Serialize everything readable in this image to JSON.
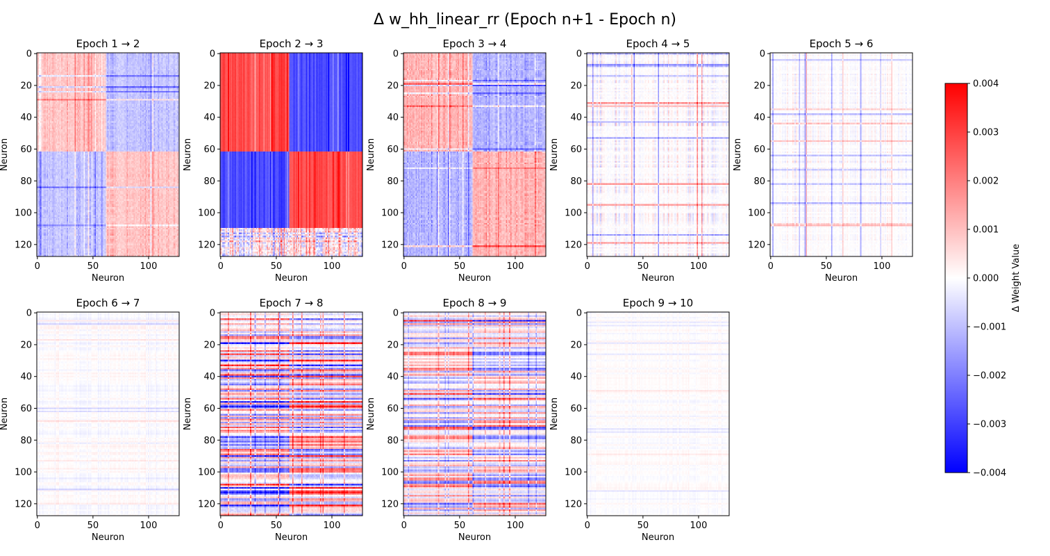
{
  "figure": {
    "title": "Δ w_hh_linear_rr (Epoch n+1 - Epoch n)"
  },
  "chart_data": {
    "type": "heatmap",
    "matrix_size": 128,
    "panels": [
      {
        "title": "Epoch 1 → 2",
        "xlabel": "Neuron",
        "ylabel": "Neuron",
        "x_ticks": [
          "0",
          "50",
          "100"
        ],
        "y_ticks": [
          "0",
          "20",
          "40",
          "60",
          "80",
          "100",
          "120"
        ],
        "pattern": "twoblock",
        "split": 62,
        "amp": 0.0013,
        "seed": 11
      },
      {
        "title": "Epoch 2 → 3",
        "xlabel": "Neuron",
        "ylabel": "Neuron",
        "x_ticks": [
          "0",
          "50",
          "100"
        ],
        "y_ticks": [
          "0",
          "20",
          "40",
          "60",
          "80",
          "100",
          "120"
        ],
        "pattern": "fourblock",
        "rowsplit": 62,
        "colsplit": 62,
        "rowsplit2": 110,
        "amp": 0.0033,
        "seed": 23
      },
      {
        "title": "Epoch 3 → 4",
        "xlabel": "Neuron",
        "ylabel": "Neuron",
        "x_ticks": [
          "0",
          "50",
          "100"
        ],
        "y_ticks": [
          "0",
          "20",
          "40",
          "60",
          "80",
          "100",
          "120"
        ],
        "pattern": "twoblock",
        "split": 62,
        "amp": 0.0016,
        "seed": 37
      },
      {
        "title": "Epoch 4 → 5",
        "xlabel": "Neuron",
        "ylabel": "Neuron",
        "x_ticks": [
          "0",
          "50",
          "100"
        ],
        "y_ticks": [
          "0",
          "20",
          "40",
          "60",
          "80",
          "100",
          "120"
        ],
        "pattern": "lines",
        "amp": 0.0011,
        "seed": 41
      },
      {
        "title": "Epoch 5 → 6",
        "xlabel": "Neuron",
        "ylabel": "Neuron",
        "x_ticks": [
          "0",
          "50",
          "100"
        ],
        "y_ticks": [
          "0",
          "20",
          "40",
          "60",
          "80",
          "100",
          "120"
        ],
        "pattern": "lines",
        "amp": 0.0008,
        "seed": 53
      },
      {
        "title": "Epoch 6 → 7",
        "xlabel": "Neuron",
        "ylabel": "Neuron",
        "x_ticks": [
          "0",
          "50",
          "100"
        ],
        "y_ticks": [
          "0",
          "20",
          "40",
          "60",
          "80",
          "100",
          "120"
        ],
        "pattern": "faint",
        "amp": 0.0005,
        "seed": 67
      },
      {
        "title": "Epoch 7 → 8",
        "xlabel": "Neuron",
        "ylabel": "Neuron",
        "x_ticks": [
          "0",
          "50",
          "100"
        ],
        "y_ticks": [
          "0",
          "20",
          "40",
          "60",
          "80",
          "100",
          "120"
        ],
        "pattern": "rowcol",
        "colsplit": 62,
        "amp": 0.0034,
        "seed": 71
      },
      {
        "title": "Epoch 8 → 9",
        "xlabel": "Neuron",
        "ylabel": "Neuron",
        "x_ticks": [
          "0",
          "50",
          "100"
        ],
        "y_ticks": [
          "0",
          "20",
          "40",
          "60",
          "80",
          "100",
          "120"
        ],
        "pattern": "rowcol",
        "colsplit": 62,
        "amp": 0.0025,
        "seed": 83
      },
      {
        "title": "Epoch 9 → 10",
        "xlabel": "Neuron",
        "ylabel": "Neuron",
        "x_ticks": [
          "0",
          "50",
          "100"
        ],
        "y_ticks": [
          "0",
          "20",
          "40",
          "60",
          "80",
          "100",
          "120"
        ],
        "pattern": "faint",
        "amp": 0.0004,
        "seed": 97
      }
    ],
    "colorbar": {
      "label": "Δ Weight Value",
      "colormap": "bwr",
      "vmin": -0.004,
      "vmax": 0.004,
      "ticks": [
        "0.004",
        "0.003",
        "0.002",
        "0.001",
        "0.000",
        "−0.001",
        "−0.002",
        "−0.003",
        "−0.004"
      ],
      "tick_values": [
        0.004,
        0.003,
        0.002,
        0.001,
        0.0,
        -0.001,
        -0.002,
        -0.003,
        -0.004
      ],
      "color_min": "#0000ff",
      "color_mid": "#ffffff",
      "color_max": "#ff0000"
    }
  }
}
